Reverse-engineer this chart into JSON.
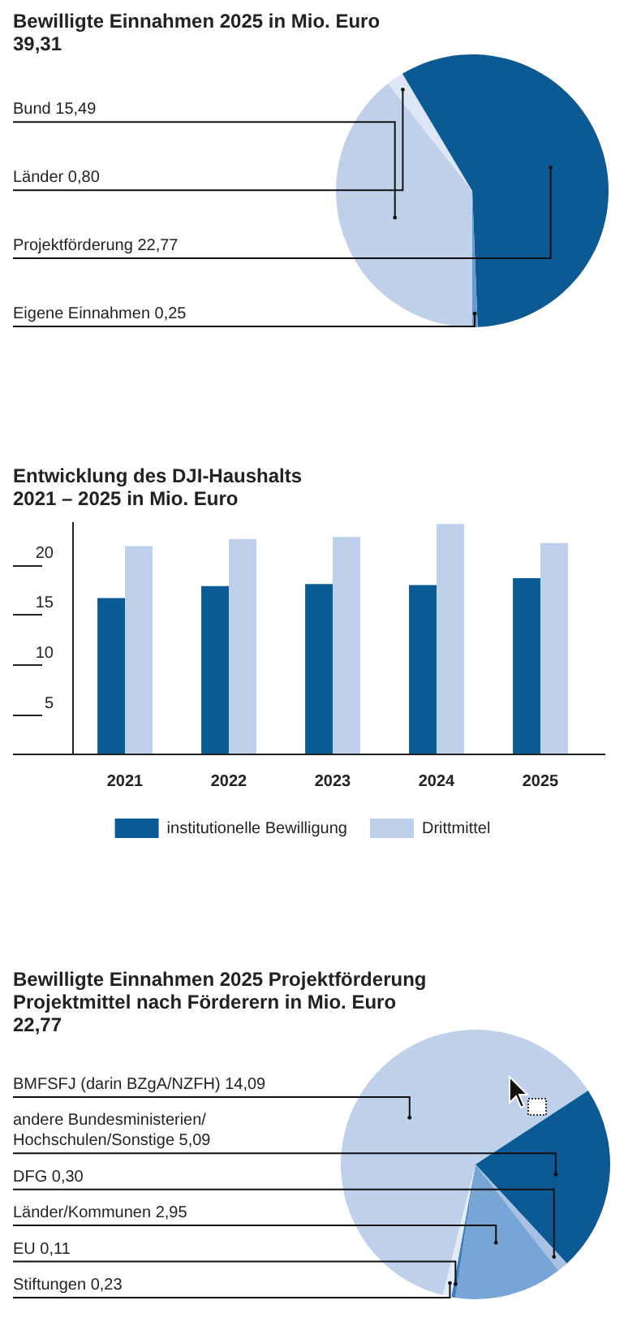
{
  "chart_data": [
    {
      "type": "pie",
      "title": "Bewilligte Einnahmen 2025 in Mio. Euro",
      "annotations": [
        "39,31"
      ],
      "categories": [
        "Bund",
        "Länder",
        "Projektförderung",
        "Eigene Einnahmen"
      ],
      "values": [
        15.49,
        0.8,
        22.77,
        0.25
      ],
      "colors": [
        "#bfd0ea",
        "#dde6f4",
        "#0b5a94",
        "#6a9ad0"
      ],
      "value_labels": [
        "15,49",
        "0,80",
        "22,77",
        "0,25"
      ]
    },
    {
      "type": "bar",
      "title": "Entwicklung des DJI-Haushalts",
      "subtitle": "2021 – 2025 in Mio. Euro",
      "categories": [
        "2021",
        "2022",
        "2023",
        "2024",
        "2025"
      ],
      "series": [
        {
          "name": "institutionelle Bewilligung",
          "color": "#0b5a94",
          "values": [
            15.5,
            16.7,
            16.9,
            16.8,
            17.5
          ]
        },
        {
          "name": "Drittmittel",
          "color": "#bfd0ea",
          "values": [
            20.7,
            21.4,
            21.6,
            22.9,
            21.0
          ]
        }
      ],
      "ylim": [
        0,
        23
      ],
      "yticks": [
        5,
        10,
        15,
        20
      ],
      "grid": false,
      "legend": "bottom"
    },
    {
      "type": "pie",
      "title": "Bewilligte Einnahmen 2025 Projektförderung",
      "subtitle": "Projektmittel nach Förderern in Mio. Euro",
      "annotations": [
        "22,77"
      ],
      "categories": [
        "BMFSFJ (darin BZgA/NZFH)",
        "andere Bundesministerien/Hochschulen/Sonstige",
        "DFG",
        "Länder/Kommunen",
        "EU",
        "Stiftungen"
      ],
      "values": [
        14.09,
        5.09,
        0.3,
        2.95,
        0.11,
        0.23
      ],
      "colors": [
        "#bfd0ea",
        "#0b5a94",
        "#a9c0e2",
        "#76a5d6",
        "#3c7fc0",
        "#e3ebf6"
      ],
      "value_labels": [
        "14,09",
        "5,09",
        "0,30",
        "2,95",
        "0,11",
        "0,23"
      ]
    }
  ]
}
